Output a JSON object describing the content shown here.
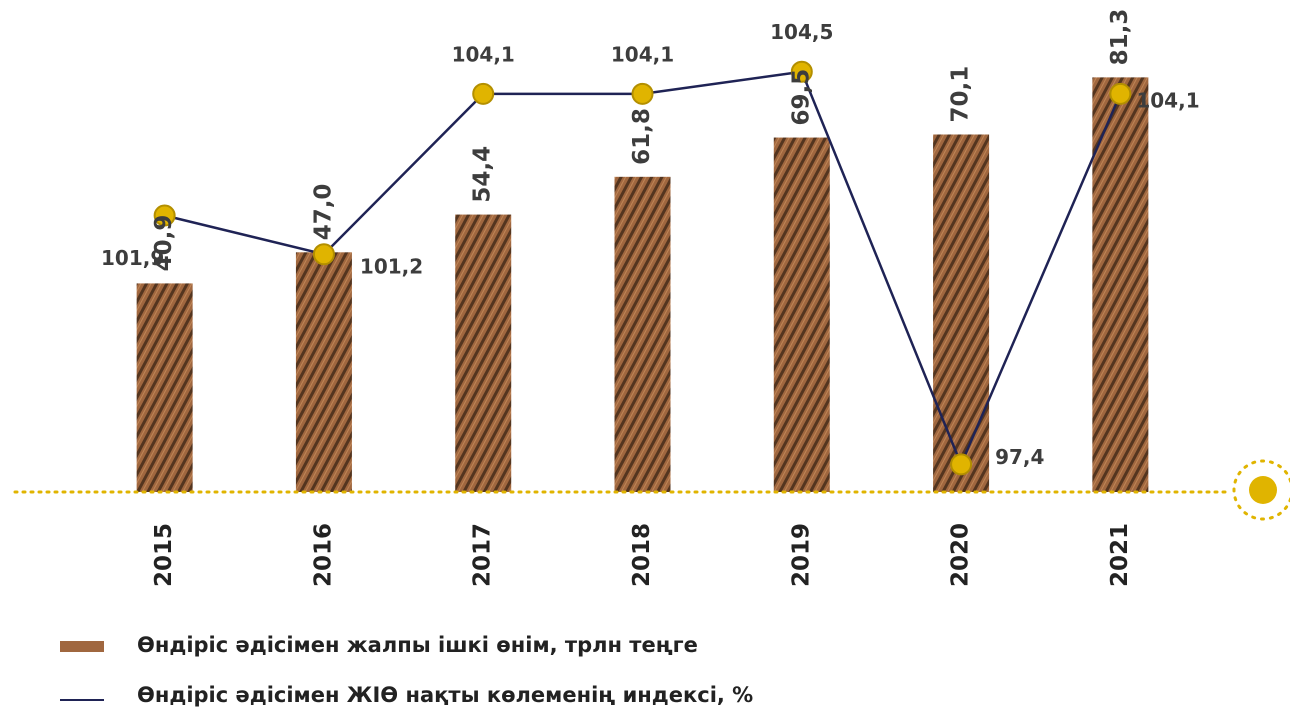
{
  "chart_data": {
    "type": "bar",
    "categories": [
      "2015",
      "2016",
      "2017",
      "2018",
      "2019",
      "2020",
      "2021"
    ],
    "series": [
      {
        "name": "Өндіріс әдісімен жалпы ішкі өнім, трлн теңге",
        "type": "bar",
        "color": "#a0673f",
        "values": [
          40.9,
          47.0,
          54.4,
          61.8,
          69.5,
          70.1,
          81.3
        ],
        "value_labels": [
          "40,9",
          "47,0",
          "54,4",
          "61,8",
          "69,5",
          "70,1",
          "81,3"
        ]
      },
      {
        "name": "Өндіріс әдісімен ЖІӨ нақты көлеменің индексі, %",
        "type": "line",
        "axis": "y2",
        "color": "#1f2355",
        "marker_color": "#e0b400",
        "values": [
          101.9,
          101.2,
          104.1,
          104.1,
          104.5,
          97.4,
          104.1
        ],
        "value_labels": [
          "101,9",
          "101,2",
          "104,1",
          "104,1",
          "104,5",
          "97,4",
          "104,1"
        ]
      }
    ],
    "ylim": [
      0,
      90
    ],
    "y2lim": [
      96.9,
      105.2
    ]
  }
}
